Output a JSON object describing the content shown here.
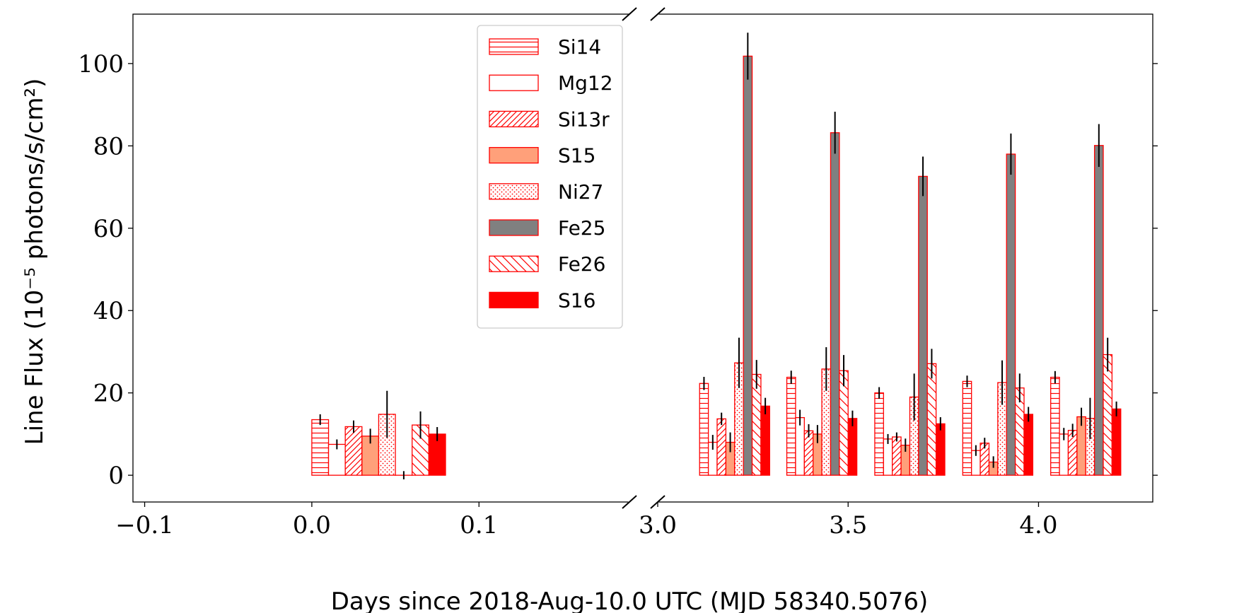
{
  "chart_data": {
    "type": "bar",
    "ylabel": "Line Flux (10⁻⁵ photons/s/cm²)",
    "xlabel": "Days since 2018-Aug-10.0 UTC (MJD 58340.5076)",
    "ylim": [
      -6.5,
      112
    ],
    "y_ticks": [
      0,
      20,
      40,
      60,
      80,
      100
    ],
    "broken_x_axis": true,
    "x_segments": [
      {
        "xlim": [
          -0.107,
          0.19
        ],
        "ticks": [
          -0.1,
          0.0,
          0.1
        ],
        "tick_labels": [
          "−0.1",
          "0.0",
          "0.1"
        ]
      },
      {
        "xlim": [
          3.0,
          4.3
        ],
        "ticks": [
          3.0,
          3.5,
          4.0
        ],
        "tick_labels": [
          "3.0",
          "3.5",
          "4.0"
        ]
      }
    ],
    "series_style": [
      {
        "name": "Si14",
        "pattern": "hlines",
        "fill": "#ffffff",
        "edge": "#ff0000"
      },
      {
        "name": "Mg12",
        "pattern": "none",
        "fill": "#ffffff",
        "edge": "#ff0000"
      },
      {
        "name": "Si13r",
        "pattern": "diag-fwd",
        "fill": "#ffffff",
        "edge": "#ff0000"
      },
      {
        "name": "S15",
        "pattern": "none",
        "fill": "#ffa07a",
        "edge": "#ff0000"
      },
      {
        "name": "Ni27",
        "pattern": "dots",
        "fill": "#ffffff",
        "edge": "#ff0000"
      },
      {
        "name": "Fe25",
        "pattern": "none",
        "fill": "#808080",
        "edge": "#ff0000"
      },
      {
        "name": "Fe26",
        "pattern": "diag-back",
        "fill": "#ffffff",
        "edge": "#ff0000"
      },
      {
        "name": "S16",
        "pattern": "none",
        "fill": "#ff0000",
        "edge": "#ff0000"
      }
    ],
    "bar_width_days": [
      0.01,
      0.023
    ],
    "groups": [
      {
        "segment": 0,
        "x": [
          0.0,
          0.01,
          0.02,
          0.03,
          0.04,
          0.05,
          0.06,
          0.07
        ],
        "values": [
          13.5,
          7.5,
          11.8,
          9.5,
          14.8,
          0,
          12.2,
          10.0
        ],
        "errors": [
          1.3,
          1.2,
          1.5,
          1.8,
          5.7,
          1.0,
          3.3,
          1.7
        ]
      },
      {
        "segment": 1,
        "x": [
          3.11,
          3.133,
          3.156,
          3.179,
          3.202,
          3.225,
          3.248,
          3.271
        ],
        "values": [
          22.3,
          8.0,
          13.7,
          8.0,
          27.3,
          101.8,
          24.5,
          16.8
        ],
        "errors": [
          1.6,
          1.8,
          1.5,
          2.4,
          6.1,
          5.7,
          3.5,
          2.0
        ]
      },
      {
        "segment": 1,
        "x": [
          3.339,
          3.362,
          3.385,
          3.408,
          3.431,
          3.454,
          3.477,
          3.5
        ],
        "values": [
          23.8,
          14.0,
          10.8,
          10.0,
          25.8,
          83.2,
          25.4,
          13.8
        ],
        "errors": [
          1.6,
          1.9,
          1.6,
          2.2,
          5.3,
          5.1,
          3.8,
          1.9
        ]
      },
      {
        "segment": 1,
        "x": [
          3.57,
          3.593,
          3.616,
          3.639,
          3.662,
          3.685,
          3.708,
          3.731
        ],
        "values": [
          20.0,
          8.8,
          9.3,
          7.3,
          19.0,
          72.6,
          27.1,
          12.5
        ],
        "errors": [
          1.4,
          1.2,
          1.1,
          1.6,
          5.7,
          4.8,
          3.6,
          1.6
        ]
      },
      {
        "segment": 1,
        "x": [
          3.801,
          3.824,
          3.847,
          3.87,
          3.893,
          3.916,
          3.939,
          3.962
        ],
        "values": [
          22.8,
          6.0,
          7.8,
          3.2,
          22.5,
          78.0,
          21.2,
          14.8
        ],
        "errors": [
          1.4,
          1.3,
          1.3,
          1.4,
          5.4,
          5.0,
          3.5,
          1.8
        ]
      },
      {
        "segment": 1,
        "x": [
          4.032,
          4.055,
          4.078,
          4.101,
          4.124,
          4.147,
          4.17,
          4.193
        ],
        "values": [
          23.8,
          10.0,
          10.9,
          14.2,
          13.8,
          80.1,
          29.3,
          16.1
        ],
        "errors": [
          1.5,
          1.5,
          1.6,
          2.2,
          5.0,
          5.2,
          4.1,
          1.8
        ]
      }
    ],
    "legend": {
      "placement": "upper-center",
      "entries": [
        "Si14",
        "Mg12",
        "Si13r",
        "S15",
        "Ni27",
        "Fe25",
        "Fe26",
        "S16"
      ]
    },
    "grid": false
  }
}
